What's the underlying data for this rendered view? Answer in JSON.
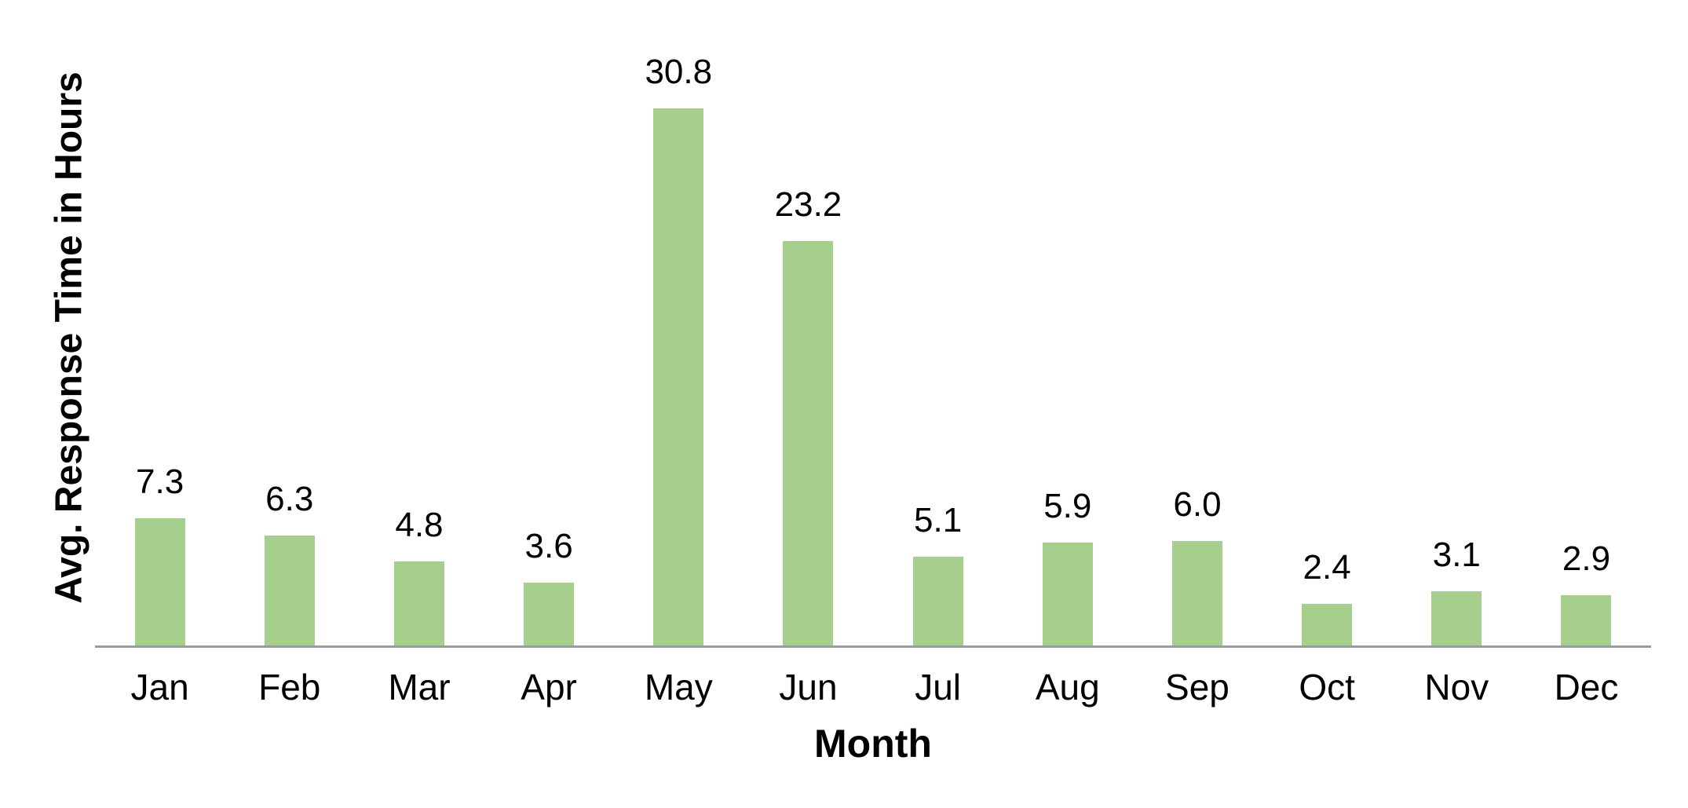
{
  "chart_data": {
    "type": "bar",
    "title": "",
    "xlabel": "Month",
    "ylabel": "Avg. Response Time in Hours",
    "categories": [
      "Jan",
      "Feb",
      "Mar",
      "Apr",
      "May",
      "Jun",
      "Jul",
      "Aug",
      "Sep",
      "Oct",
      "Nov",
      "Dec"
    ],
    "values": [
      7.3,
      6.3,
      4.8,
      3.6,
      30.8,
      23.2,
      5.1,
      5.9,
      6.0,
      2.4,
      3.1,
      2.9
    ],
    "value_labels": [
      "7.3",
      "6.3",
      "4.8",
      "3.6",
      "30.8",
      "23.2",
      "5.1",
      "5.9",
      "6.0",
      "2.4",
      "3.1",
      "2.9"
    ],
    "ylim": [
      0,
      37
    ],
    "grid": false,
    "legend": "none",
    "data_labels": "above-bars",
    "bar_color": "#a6ce8c",
    "axis_line_color": "#9c9c9c",
    "text_color": "#000000",
    "background_color": "#ffffff"
  }
}
